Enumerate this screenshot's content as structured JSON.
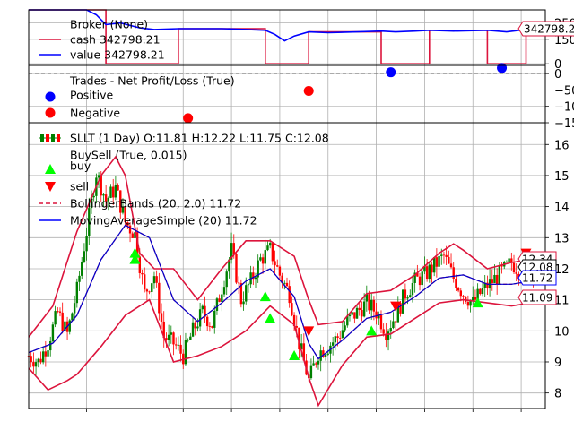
{
  "chart_data": [
    {
      "type": "line",
      "panel": "broker",
      "yticks": [
        0,
        150,
        250
      ],
      "ylim": [
        -10,
        330
      ],
      "legend": [
        {
          "name": "Broker (None)",
          "color": "#000000",
          "style": "none"
        },
        {
          "name": "cash 342798.21",
          "color": "#dc143c",
          "style": "line"
        },
        {
          "name": "value 342798.21",
          "color": "#0000ff",
          "style": "line"
        }
      ],
      "value_label": "342798.2",
      "series": [
        {
          "name": "cash",
          "color": "#dc143c",
          "points": [
            [
              0,
              330
            ],
            [
              16,
              330
            ],
            [
              16,
              0
            ],
            [
              31,
              0
            ],
            [
              31,
              215
            ],
            [
              49,
              215
            ],
            [
              49,
              0
            ],
            [
              58,
              0
            ],
            [
              58,
              195
            ],
            [
              73,
              195
            ],
            [
              73,
              0
            ],
            [
              83,
              0
            ],
            [
              83,
              205
            ],
            [
              95,
              205
            ],
            [
              95,
              0
            ],
            [
              103,
              0
            ],
            [
              103,
              215
            ],
            [
              107,
              215
            ]
          ]
        },
        {
          "name": "value",
          "color": "#0000ff",
          "points": [
            [
              0,
              330
            ],
            [
              12,
              330
            ],
            [
              14,
              300
            ],
            [
              16,
              240
            ],
            [
              19,
              250
            ],
            [
              23,
              220
            ],
            [
              26,
              210
            ],
            [
              31,
              215
            ],
            [
              40,
              215
            ],
            [
              45,
              210
            ],
            [
              49,
              205
            ],
            [
              51,
              180
            ],
            [
              53,
              140
            ],
            [
              55,
              170
            ],
            [
              58,
              195
            ],
            [
              62,
              190
            ],
            [
              68,
              195
            ],
            [
              73,
              200
            ],
            [
              76,
              195
            ],
            [
              80,
              200
            ],
            [
              83,
              205
            ],
            [
              88,
              200
            ],
            [
              95,
              205
            ],
            [
              99,
              195
            ],
            [
              103,
              210
            ],
            [
              107,
              215
            ]
          ]
        }
      ]
    },
    {
      "type": "scatter",
      "panel": "trades",
      "yticks": [
        0,
        -50,
        -100,
        -150
      ],
      "ytick_labels": [
        "0",
        "−50",
        "−100",
        "−150"
      ],
      "ylim": [
        -150,
        25
      ],
      "legend": [
        {
          "name": "Trades - Net Profit/Loss (True)",
          "color": "#000000",
          "style": "none"
        },
        {
          "name": "Positive",
          "color": "#0000ff",
          "style": "dot"
        },
        {
          "name": "Negative",
          "color": "#ff0000",
          "style": "dot"
        }
      ],
      "positive": [
        [
          75,
          4
        ],
        [
          98,
          17
        ]
      ],
      "negative": [
        [
          33,
          -136
        ],
        [
          58,
          -53
        ]
      ]
    },
    {
      "type": "candlestick",
      "panel": "price",
      "yticks": [
        8,
        9,
        10,
        11,
        12,
        13,
        14,
        15,
        16
      ],
      "ylim": [
        7.5,
        16.7
      ],
      "xlim": [
        0,
        107
      ],
      "legend": [
        {
          "name": "SLLT (1 Day) O:11.81 H:12.22 L:11.75 C:12.08",
          "color": "#008000",
          "style": "candle"
        },
        {
          "name": "BuySell (True, 0.015)",
          "color": "#000000",
          "style": "none"
        },
        {
          "name": "buy",
          "color": "#00ff00",
          "style": "triangle-up"
        },
        {
          "name": "sell",
          "color": "#ff0000",
          "style": "triangle-down"
        },
        {
          "name": "BollingerBands (20, 2.0) 11.72",
          "color": "#dc143c",
          "style": "dashed"
        },
        {
          "name": "MovingAverageSimple (20) 11.72",
          "color": "#0000ff",
          "style": "line"
        }
      ],
      "last_value_labels": [
        {
          "value": 12.34,
          "text": "12.34",
          "color": "#dc143c"
        },
        {
          "value": 12.08,
          "text": "12.08",
          "color": "#000000"
        },
        {
          "value": 11.72,
          "text": "11.72",
          "color": "#0000ff"
        },
        {
          "value": 11.09,
          "text": "11.09",
          "color": "#dc143c"
        }
      ],
      "close": [
        [
          0,
          9.2
        ],
        [
          2,
          9.0
        ],
        [
          4,
          9.6
        ],
        [
          6,
          10.6
        ],
        [
          8,
          9.9
        ],
        [
          10,
          11.3
        ],
        [
          12,
          13.2
        ],
        [
          14,
          15.1
        ],
        [
          16,
          14.2
        ],
        [
          18,
          14.6
        ],
        [
          20,
          13.5
        ],
        [
          22,
          13.1
        ],
        [
          24,
          11.2
        ],
        [
          26,
          11.8
        ],
        [
          28,
          9.8
        ],
        [
          30,
          9.6
        ],
        [
          32,
          9.2
        ],
        [
          34,
          10.0
        ],
        [
          36,
          10.6
        ],
        [
          38,
          10.2
        ],
        [
          40,
          11.4
        ],
        [
          42,
          12.6
        ],
        [
          44,
          11.0
        ],
        [
          46,
          11.6
        ],
        [
          48,
          12.3
        ],
        [
          50,
          12.6
        ],
        [
          52,
          11.8
        ],
        [
          54,
          11.2
        ],
        [
          56,
          9.6
        ],
        [
          58,
          8.4
        ],
        [
          60,
          9.3
        ],
        [
          62,
          9.5
        ],
        [
          64,
          9.8
        ],
        [
          66,
          10.3
        ],
        [
          68,
          10.6
        ],
        [
          70,
          10.9
        ],
        [
          72,
          10.6
        ],
        [
          74,
          10.0
        ],
        [
          76,
          10.5
        ],
        [
          78,
          11.2
        ],
        [
          80,
          11.6
        ],
        [
          82,
          11.8
        ],
        [
          84,
          12.1
        ],
        [
          86,
          12.4
        ],
        [
          88,
          11.7
        ],
        [
          90,
          11.2
        ],
        [
          92,
          10.9
        ],
        [
          94,
          11.3
        ],
        [
          96,
          11.6
        ],
        [
          98,
          11.9
        ],
        [
          100,
          12.2
        ],
        [
          102,
          11.9
        ],
        [
          104,
          12.0
        ],
        [
          106,
          12.1
        ]
      ],
      "sma": [
        [
          0,
          9.3
        ],
        [
          5,
          9.6
        ],
        [
          10,
          10.5
        ],
        [
          15,
          12.3
        ],
        [
          20,
          13.4
        ],
        [
          25,
          13.0
        ],
        [
          30,
          11.0
        ],
        [
          35,
          10.3
        ],
        [
          40,
          10.9
        ],
        [
          45,
          11.6
        ],
        [
          50,
          12.0
        ],
        [
          55,
          11.1
        ],
        [
          58,
          9.6
        ],
        [
          60,
          9.1
        ],
        [
          65,
          9.7
        ],
        [
          70,
          10.4
        ],
        [
          75,
          10.6
        ],
        [
          80,
          11.1
        ],
        [
          85,
          11.7
        ],
        [
          90,
          11.8
        ],
        [
          95,
          11.5
        ],
        [
          100,
          11.5
        ],
        [
          104,
          11.6
        ],
        [
          106,
          11.72
        ]
      ],
      "bb_top": [
        [
          0,
          9.8
        ],
        [
          5,
          10.8
        ],
        [
          10,
          13.2
        ],
        [
          15,
          15.0
        ],
        [
          18,
          15.6
        ],
        [
          20,
          15.0
        ],
        [
          23,
          12.5
        ],
        [
          26,
          12.0
        ],
        [
          30,
          12.0
        ],
        [
          35,
          11.0
        ],
        [
          40,
          12.0
        ],
        [
          45,
          12.9
        ],
        [
          50,
          12.9
        ],
        [
          55,
          12.4
        ],
        [
          58,
          11.0
        ],
        [
          60,
          10.2
        ],
        [
          65,
          10.3
        ],
        [
          70,
          11.2
        ],
        [
          75,
          11.3
        ],
        [
          80,
          11.8
        ],
        [
          85,
          12.5
        ],
        [
          88,
          12.8
        ],
        [
          90,
          12.6
        ],
        [
          95,
          12.0
        ],
        [
          100,
          12.2
        ],
        [
          104,
          12.3
        ],
        [
          106,
          12.34
        ]
      ],
      "bb_bot": [
        [
          0,
          8.8
        ],
        [
          4,
          8.1
        ],
        [
          8,
          8.4
        ],
        [
          10,
          8.6
        ],
        [
          15,
          9.5
        ],
        [
          20,
          10.5
        ],
        [
          25,
          11.0
        ],
        [
          30,
          9.0
        ],
        [
          35,
          9.2
        ],
        [
          40,
          9.5
        ],
        [
          45,
          10.0
        ],
        [
          50,
          10.8
        ],
        [
          55,
          10.2
        ],
        [
          58,
          8.5
        ],
        [
          60,
          7.6
        ],
        [
          65,
          8.9
        ],
        [
          70,
          9.8
        ],
        [
          75,
          9.9
        ],
        [
          80,
          10.4
        ],
        [
          85,
          10.9
        ],
        [
          90,
          11.0
        ],
        [
          95,
          10.9
        ],
        [
          100,
          10.8
        ],
        [
          104,
          10.9
        ],
        [
          106,
          11.09
        ]
      ],
      "buy": [
        [
          22,
          12.3
        ],
        [
          22,
          12.5
        ],
        [
          49,
          11.1
        ],
        [
          50,
          10.4
        ],
        [
          55,
          9.2
        ],
        [
          71,
          10.0
        ],
        [
          93,
          10.9
        ],
        [
          104,
          12.0
        ]
      ],
      "sell": [
        [
          58,
          10.0
        ],
        [
          76,
          10.8
        ],
        [
          103,
          12.5
        ]
      ]
    }
  ]
}
